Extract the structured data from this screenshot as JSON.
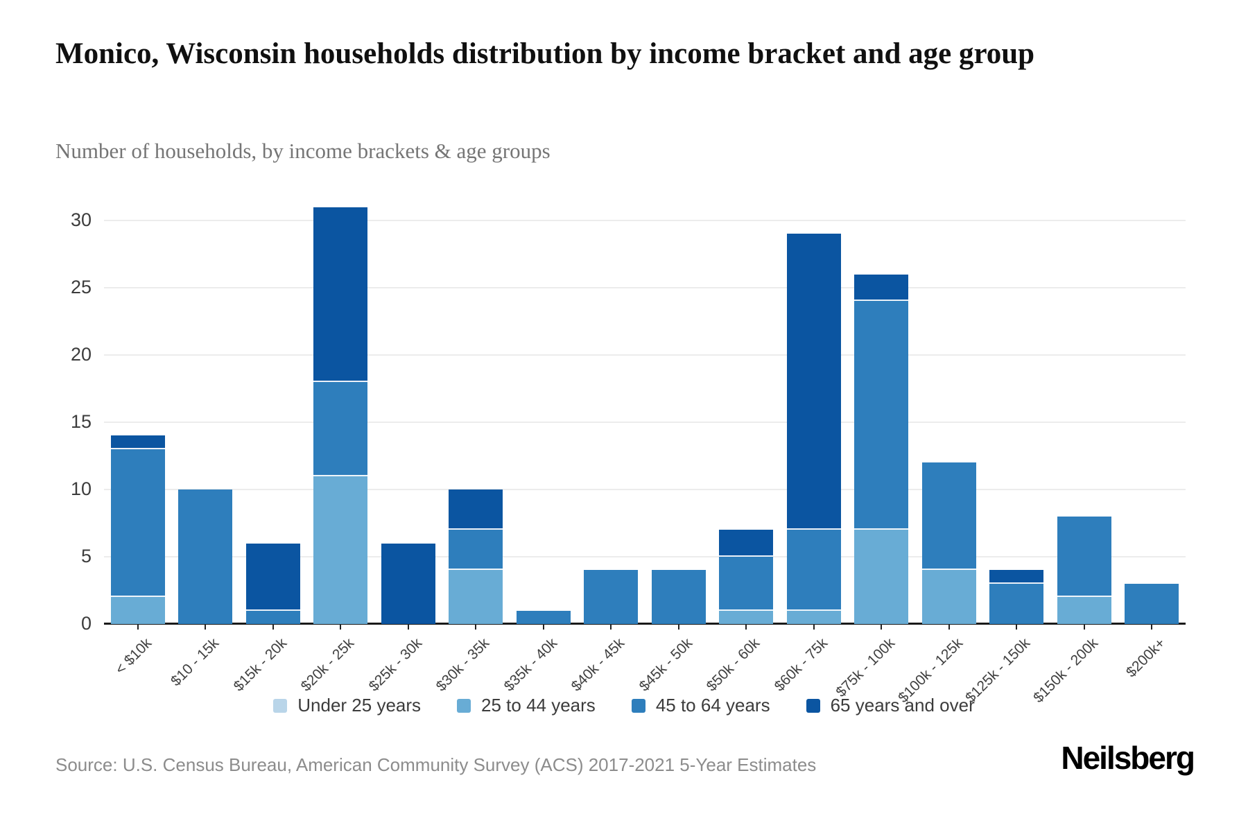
{
  "header": {
    "title": "Monico, Wisconsin households distribution by income bracket and age group",
    "subtitle": "Number of households, by income brackets & age groups"
  },
  "chart_data": {
    "type": "bar",
    "stacked": true,
    "title": "Monico, Wisconsin households distribution by income bracket and age group",
    "subtitle": "Number of households, by income brackets & age groups",
    "xlabel": "",
    "ylabel": "",
    "ylim": [
      0,
      31
    ],
    "yticks": [
      0,
      5,
      10,
      15,
      20,
      25,
      30
    ],
    "grid": true,
    "legend_position": "bottom",
    "categories": [
      "< $10k",
      "$10 - 15k",
      "$15k - 20k",
      "$20k - 25k",
      "$25k - 30k",
      "$30k - 35k",
      "$35k - 40k",
      "$40k - 45k",
      "$45k - 50k",
      "$50k - 60k",
      "$60k - 75k",
      "$75k - 100k",
      "$100k - 125k",
      "$125k - 150k",
      "$150k - 200k",
      "$200k+"
    ],
    "series": [
      {
        "name": "Under 25 years",
        "color": "#b9d5e9",
        "values": [
          0,
          0,
          0,
          0,
          0,
          0,
          0,
          0,
          0,
          0,
          0,
          0,
          0,
          0,
          0,
          0
        ]
      },
      {
        "name": "25 to 44 years",
        "color": "#68acd5",
        "values": [
          2,
          0,
          0,
          11,
          0,
          4,
          0,
          0,
          0,
          1,
          1,
          7,
          4,
          0,
          2,
          0
        ]
      },
      {
        "name": "45 to 64 years",
        "color": "#2e7ebc",
        "values": [
          11,
          10,
          1,
          7,
          0,
          3,
          1,
          4,
          4,
          4,
          6,
          17,
          8,
          3,
          6,
          3
        ]
      },
      {
        "name": "65 years and over",
        "color": "#0b55a1",
        "values": [
          1,
          0,
          5,
          13,
          6,
          3,
          0,
          0,
          0,
          2,
          22,
          2,
          0,
          1,
          0,
          0
        ]
      }
    ],
    "bar_totals": [
      14,
      10,
      6,
      31,
      6,
      10,
      1,
      4,
      4,
      7,
      29,
      26,
      12,
      4,
      8,
      3
    ]
  },
  "footer": {
    "source": "Source: U.S. Census Bureau, American Community Survey (ACS) 2017-2021 5-Year Estimates",
    "brand": "Neilsberg"
  }
}
